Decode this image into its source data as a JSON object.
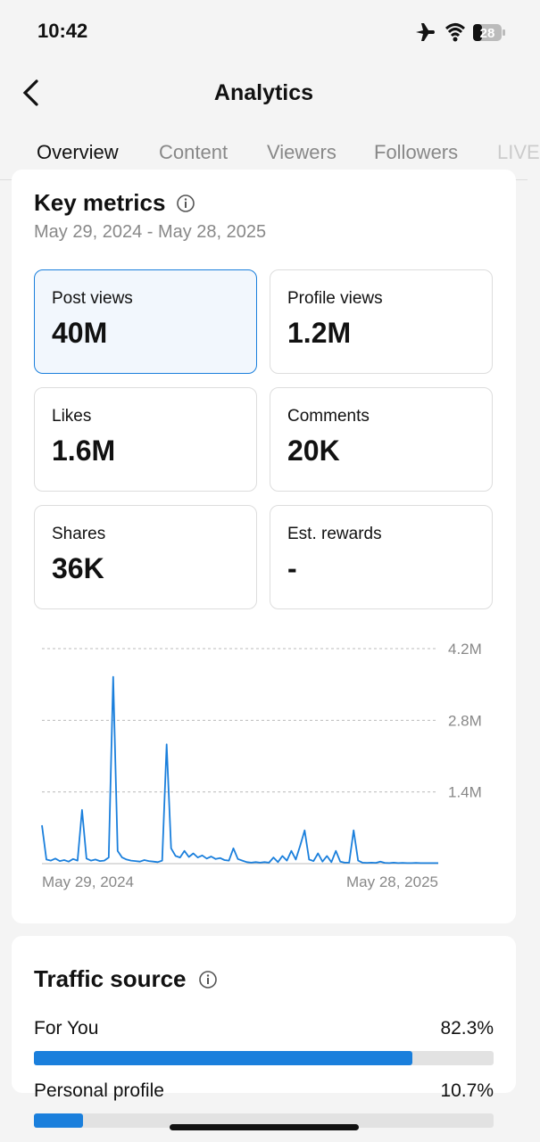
{
  "status_bar": {
    "time": "10:42",
    "battery": "28"
  },
  "header": {
    "title": "Analytics"
  },
  "tabs": [
    "Overview",
    "Content",
    "Viewers",
    "Followers",
    "LIVE"
  ],
  "key_metrics": {
    "title": "Key metrics",
    "date_range": "May 29, 2024 - May 28, 2025",
    "cards": [
      {
        "label": "Post views",
        "value": "40M"
      },
      {
        "label": "Profile views",
        "value": "1.2M"
      },
      {
        "label": "Likes",
        "value": "1.6M"
      },
      {
        "label": "Comments",
        "value": "20K"
      },
      {
        "label": "Shares",
        "value": "36K"
      },
      {
        "label": "Est. rewards",
        "value": "-"
      }
    ]
  },
  "chart_data": {
    "type": "line",
    "categories": [
      "May 29, 2024",
      null,
      null,
      null,
      null,
      null,
      null,
      null,
      null,
      null,
      null,
      null,
      null,
      null,
      null,
      null,
      null,
      null,
      null,
      null,
      null,
      null,
      null,
      null,
      null,
      null,
      null,
      null,
      null,
      null,
      null,
      null,
      null,
      null,
      null,
      null,
      null,
      null,
      null,
      null,
      null,
      null,
      null,
      null,
      null,
      null,
      null,
      null,
      null,
      null,
      null,
      null,
      null,
      null,
      null,
      null,
      null,
      null,
      null,
      null,
      null,
      null,
      null,
      null,
      null,
      null,
      null,
      null,
      null,
      null,
      null,
      null,
      null,
      null,
      null,
      null,
      null,
      null,
      null,
      null,
      null,
      null,
      null,
      null,
      null,
      null,
      null,
      null,
      null,
      "May 28, 2025"
    ],
    "series": [
      {
        "name": "Post views",
        "color": "#1a7fdc",
        "values": [
          750000,
          80000,
          60000,
          100000,
          50000,
          70000,
          40000,
          90000,
          60000,
          1050000,
          100000,
          60000,
          80000,
          50000,
          60000,
          120000,
          3650000,
          250000,
          120000,
          80000,
          60000,
          50000,
          40000,
          70000,
          50000,
          40000,
          30000,
          60000,
          2330000,
          300000,
          150000,
          120000,
          250000,
          130000,
          200000,
          120000,
          160000,
          100000,
          140000,
          90000,
          110000,
          70000,
          60000,
          300000,
          90000,
          60000,
          30000,
          20000,
          30000,
          20000,
          30000,
          20000,
          120000,
          30000,
          150000,
          60000,
          250000,
          80000,
          350000,
          650000,
          80000,
          50000,
          200000,
          40000,
          150000,
          30000,
          250000,
          40000,
          20000,
          20000,
          650000,
          60000,
          20000,
          15000,
          20000,
          15000,
          40000,
          15000,
          10000,
          20000,
          10000,
          15000,
          10000,
          10000,
          15000,
          10000,
          10000,
          10000,
          10000,
          10000
        ]
      }
    ],
    "ylim": [
      0,
      4200000
    ],
    "yticks": [
      {
        "value": 1400000,
        "label": "1.4M"
      },
      {
        "value": 2800000,
        "label": "2.8M"
      },
      {
        "value": 4200000,
        "label": "4.2M"
      }
    ],
    "grid": true
  },
  "traffic_source": {
    "title": "Traffic source",
    "items": [
      {
        "name": "For You",
        "value": 82.3,
        "value_label": "82.3%"
      },
      {
        "name": "Personal profile",
        "value": 10.7,
        "value_label": "10.7%"
      }
    ]
  }
}
